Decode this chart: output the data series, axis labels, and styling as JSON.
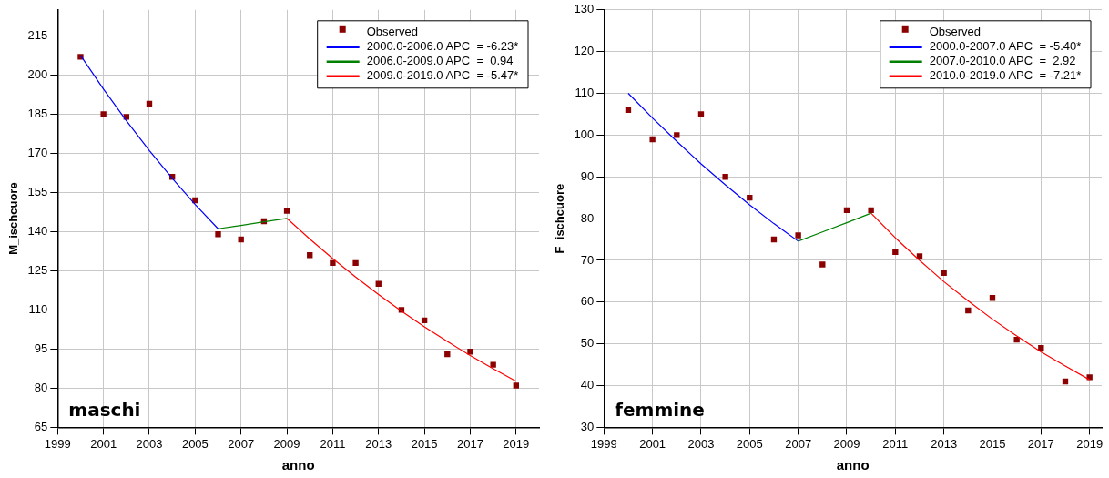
{
  "chart_data": [
    {
      "type": "scatter",
      "xlabel": "anno",
      "ylabel": "M_ischcuore",
      "xlim": [
        1999,
        2020
      ],
      "xticks": [
        1999,
        2001,
        2003,
        2005,
        2007,
        2009,
        2011,
        2013,
        2015,
        2017,
        2019
      ],
      "ylim": [
        65,
        225
      ],
      "yticks": [
        65,
        80,
        95,
        110,
        125,
        140,
        155,
        170,
        185,
        200,
        215
      ],
      "grid": true,
      "legend": "top right",
      "marker": "square",
      "annotations": [
        "maschi"
      ],
      "series": [
        {
          "name": "Observed",
          "color": "#8b0000",
          "x": [
            2000,
            2001,
            2002,
            2003,
            2004,
            2005,
            2006,
            2007,
            2008,
            2009,
            2010,
            2011,
            2012,
            2013,
            2014,
            2015,
            2016,
            2017,
            2018,
            2019
          ],
          "values": [
            207,
            185,
            184,
            189,
            161,
            152,
            139,
            137,
            144,
            148,
            131,
            128,
            128,
            120,
            110,
            106,
            93,
            94,
            89,
            81
          ]
        },
        {
          "name": "2000.0-2006.0 APC  = -6.23*",
          "type": "line",
          "marker": "none",
          "color": "#0000ff",
          "x": [
            2000,
            2001,
            2002,
            2003,
            2004,
            2005,
            2006
          ],
          "values": [
            207.5,
            194.6,
            182.5,
            171.1,
            160.4,
            150.4,
            141.1
          ]
        },
        {
          "name": "2006.0-2009.0 APC  =  0.94",
          "type": "line",
          "marker": "none",
          "color": "#008000",
          "x": [
            2006,
            2007,
            2008,
            2009
          ],
          "values": [
            141.1,
            142.4,
            143.8,
            145.1
          ]
        },
        {
          "name": "2009.0-2019.0 APC  = -5.47*",
          "type": "line",
          "marker": "none",
          "color": "#ff0000",
          "x": [
            2009,
            2010,
            2011,
            2012,
            2013,
            2014,
            2015,
            2016,
            2017,
            2018,
            2019
          ],
          "values": [
            145.1,
            137.2,
            129.7,
            122.6,
            115.9,
            109.5,
            103.5,
            97.9,
            92.5,
            87.5,
            82.7
          ]
        }
      ]
    },
    {
      "type": "scatter",
      "xlabel": "anno",
      "ylabel": "F_ischcuore",
      "xlim": [
        1999,
        2019.5
      ],
      "xticks": [
        1999,
        2001,
        2003,
        2005,
        2007,
        2009,
        2011,
        2013,
        2015,
        2017,
        2019
      ],
      "ylim": [
        30,
        130
      ],
      "yticks": [
        30,
        40,
        50,
        60,
        70,
        80,
        90,
        100,
        110,
        120,
        130
      ],
      "grid": true,
      "legend": "top right",
      "marker": "square",
      "annotations": [
        "femmine"
      ],
      "series": [
        {
          "name": "Observed",
          "color": "#8b0000",
          "x": [
            2000,
            2001,
            2002,
            2003,
            2004,
            2005,
            2006,
            2007,
            2008,
            2009,
            2010,
            2011,
            2012,
            2013,
            2014,
            2015,
            2016,
            2017,
            2018,
            2019
          ],
          "values": [
            106,
            99,
            100,
            105,
            90,
            85,
            75,
            76,
            69,
            82,
            82,
            72,
            71,
            67,
            58,
            61,
            51,
            49,
            41,
            42
          ]
        },
        {
          "name": "2000.0-2007.0 APC  = -5.40*",
          "type": "line",
          "marker": "none",
          "color": "#0000ff",
          "x": [
            2000,
            2001,
            2002,
            2003,
            2004,
            2005,
            2006,
            2007
          ],
          "values": [
            110,
            104.1,
            98.5,
            93.1,
            88.1,
            83.3,
            78.8,
            74.6
          ]
        },
        {
          "name": "2007.0-2010.0 APC  =  2.92",
          "type": "line",
          "marker": "none",
          "color": "#008000",
          "x": [
            2007,
            2008,
            2009,
            2010
          ],
          "values": [
            74.6,
            76.8,
            79.0,
            81.3
          ]
        },
        {
          "name": "2010.0-2019.0 APC  = -7.21*",
          "type": "line",
          "marker": "none",
          "color": "#ff0000",
          "x": [
            2010,
            2011,
            2012,
            2013,
            2014,
            2015,
            2016,
            2017,
            2018,
            2019
          ],
          "values": [
            81.3,
            75.4,
            70.0,
            64.9,
            60.3,
            55.9,
            51.9,
            48.1,
            44.7,
            41.4
          ]
        }
      ]
    }
  ]
}
